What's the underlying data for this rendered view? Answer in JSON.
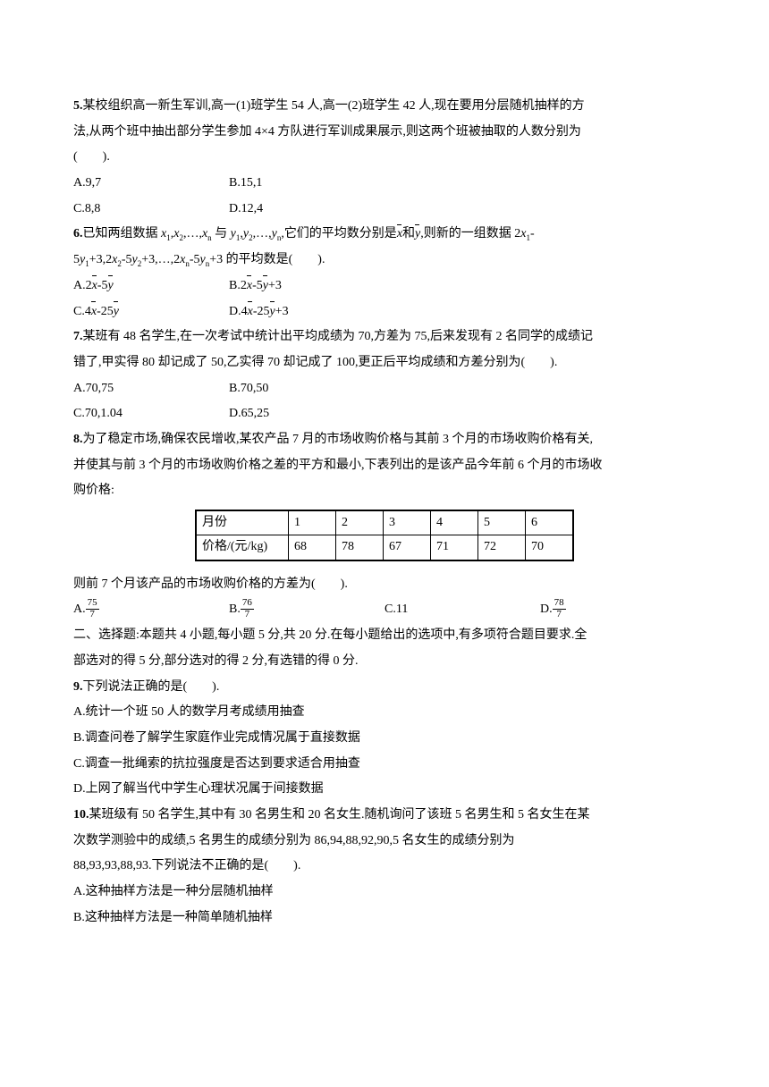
{
  "q5": {
    "num": "5.",
    "text1": "某校组织高一新生军训,高一(1)班学生 54 人,高一(2)班学生 42 人,现在要用分层随机抽样的方",
    "text2": "法,从两个班中抽出部分学生参加 4×4 方队进行军训成果展示,则这两个班被抽取的人数分别为",
    "text3": "(　　).",
    "optA": "A.9,7",
    "optB": "B.15,1",
    "optC": "C.8,8",
    "optD": "D.12,4"
  },
  "q6": {
    "num": "6.",
    "text1a": "已知两组数据 ",
    "text1b": " 与 ",
    "text1c": ",它们的平均数分别是",
    "xbar": "x",
    "text1d": "和",
    "ybar": "y",
    "text1e": ",则新的一组数据 2",
    "text1f": "-",
    "text2a": "5",
    "text2b": "+3,2",
    "text2c": "-5",
    "text2d": "+3,…,2",
    "text2e": "-5",
    "text2f": "+3 的平均数是(　　).",
    "optA_pre": "A.2",
    "optA_mid": "-5",
    "optB_pre": "B.2",
    "optB_mid": "-5",
    "optB_suf": "+3",
    "optC_pre": "C.4",
    "optC_mid": "-25",
    "optD_pre": "D.4",
    "optD_mid": "-25",
    "optD_suf": "+3",
    "x1": "x",
    "x2": "x",
    "xn": "x",
    "y1": "y",
    "y2": "y",
    "yn": "y"
  },
  "q7": {
    "num": "7.",
    "text1": "某班有 48 名学生,在一次考试中统计出平均成绩为 70,方差为 75,后来发现有 2 名同学的成绩记",
    "text2": "错了,甲实得 80 却记成了 50,乙实得 70 却记成了 100,更正后平均成绩和方差分别为(　　).",
    "optA": "A.70,75",
    "optB": "B.70,50",
    "optC": "C.70,1.04",
    "optD": "D.65,25"
  },
  "q8": {
    "num": "8.",
    "text1": "为了稳定市场,确保农民增收,某农产品 7 月的市场收购价格与其前 3 个月的市场收购价格有关,",
    "text2": "并使其与前 3 个月的市场收购价格之差的平方和最小,下表列出的是该产品今年前 6 个月的市场收",
    "text3": "购价格:",
    "table": {
      "headers": [
        "月份",
        "价格/(元/kg)"
      ],
      "cols": [
        "1",
        "2",
        "3",
        "4",
        "5",
        "6"
      ],
      "vals": [
        "68",
        "78",
        "67",
        "71",
        "72",
        "70"
      ]
    },
    "text4": "则前 7 个月该产品的市场收购价格的方差为(　　).",
    "optA_num": "75",
    "optA_den": "7",
    "optA_pre": "A.",
    "optB_num": "76",
    "optB_den": "7",
    "optB_pre": "B.",
    "optC": "C.11",
    "optD_num": "78",
    "optD_den": "7",
    "optD_pre": "D."
  },
  "section2": {
    "text1": "二、选择题:本题共 4 小题,每小题 5 分,共 20 分.在每小题给出的选项中,有多项符合题目要求.全",
    "text2": "部选对的得 5 分,部分选对的得 2 分,有选错的得 0 分."
  },
  "q9": {
    "num": "9.",
    "text": "下列说法正确的是(　　).",
    "optA": "A.统计一个班 50 人的数学月考成绩用抽查",
    "optB": "B.调查问卷了解学生家庭作业完成情况属于直接数据",
    "optC": "C.调查一批绳索的抗拉强度是否达到要求适合用抽查",
    "optD": "D.上网了解当代中学生心理状况属于间接数据"
  },
  "q10": {
    "num": "10.",
    "text1": "某班级有 50 名学生,其中有 30 名男生和 20 名女生.随机询问了该班 5 名男生和 5 名女生在某",
    "text2": "次数学测验中的成绩,5 名男生的成绩分别为 86,94,88,92,90,5 名女生的成绩分别为",
    "text3": "88,93,93,88,93.下列说法不正确的是(　　).",
    "optA": "A.这种抽样方法是一种分层随机抽样",
    "optB": "B.这种抽样方法是一种简单随机抽样"
  }
}
